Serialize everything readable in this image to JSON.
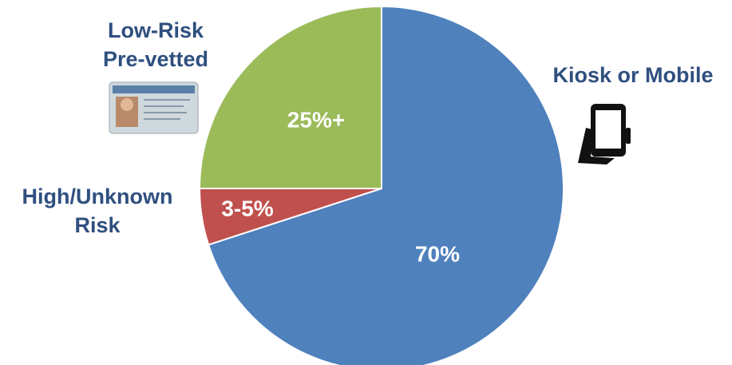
{
  "chart_data": {
    "type": "pie",
    "categories": [
      "Kiosk or Mobile",
      "High/Unknown Risk",
      "Low-Risk Pre-vetted"
    ],
    "values": [
      70,
      5,
      25
    ],
    "value_labels": [
      "70%",
      "3-5%",
      "25%+"
    ],
    "colors": [
      "#4f81bd",
      "#c0504d",
      "#9bbb59"
    ]
  }
}
